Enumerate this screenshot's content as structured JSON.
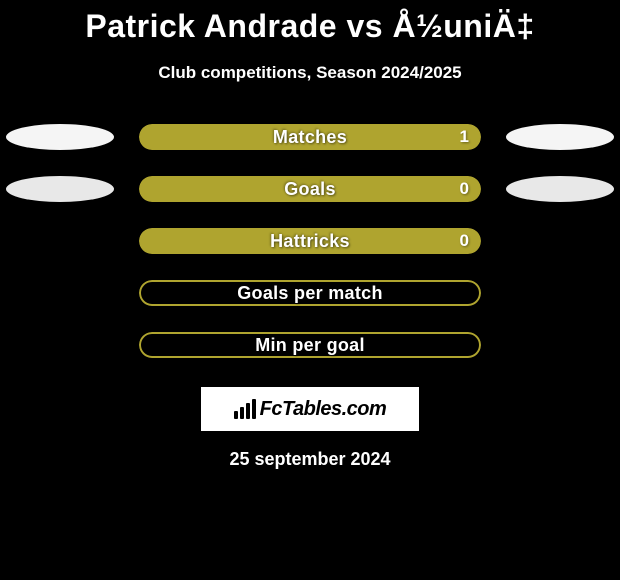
{
  "title": "Patrick Andrade vs Å½uniÄ‡",
  "subtitle": "Club competitions, Season 2024/2025",
  "colors": {
    "olive": "#afa42f",
    "background": "#000000",
    "text": "#ffffff",
    "ellipse_row1": "#f5f5f5",
    "ellipse_row2": "#e8e8e8"
  },
  "stats": [
    {
      "label": "Matches",
      "value": "1",
      "fill_pct": 100,
      "fill_color": "#afa42f",
      "show_border": false,
      "show_value": true,
      "left_ellipse": "#f5f5f5",
      "right_ellipse": "#f5f5f5"
    },
    {
      "label": "Goals",
      "value": "0",
      "fill_pct": 100,
      "fill_color": "#afa42f",
      "show_border": false,
      "show_value": true,
      "left_ellipse": "#e8e8e8",
      "right_ellipse": "#e8e8e8"
    },
    {
      "label": "Hattricks",
      "value": "0",
      "fill_pct": 100,
      "fill_color": "#afa42f",
      "show_border": false,
      "show_value": true,
      "left_ellipse": null,
      "right_ellipse": null
    },
    {
      "label": "Goals per match",
      "value": "",
      "fill_pct": 0,
      "fill_color": "#afa42f",
      "show_border": true,
      "border_color": "#afa42f",
      "show_value": false,
      "left_ellipse": null,
      "right_ellipse": null
    },
    {
      "label": "Min per goal",
      "value": "",
      "fill_pct": 0,
      "fill_color": "#afa42f",
      "show_border": true,
      "border_color": "#afa42f",
      "show_value": false,
      "left_ellipse": null,
      "right_ellipse": null
    }
  ],
  "brand": "FcTables.com",
  "brand_bars_heights": [
    8,
    12,
    16,
    20
  ],
  "date": "25 september 2024"
}
